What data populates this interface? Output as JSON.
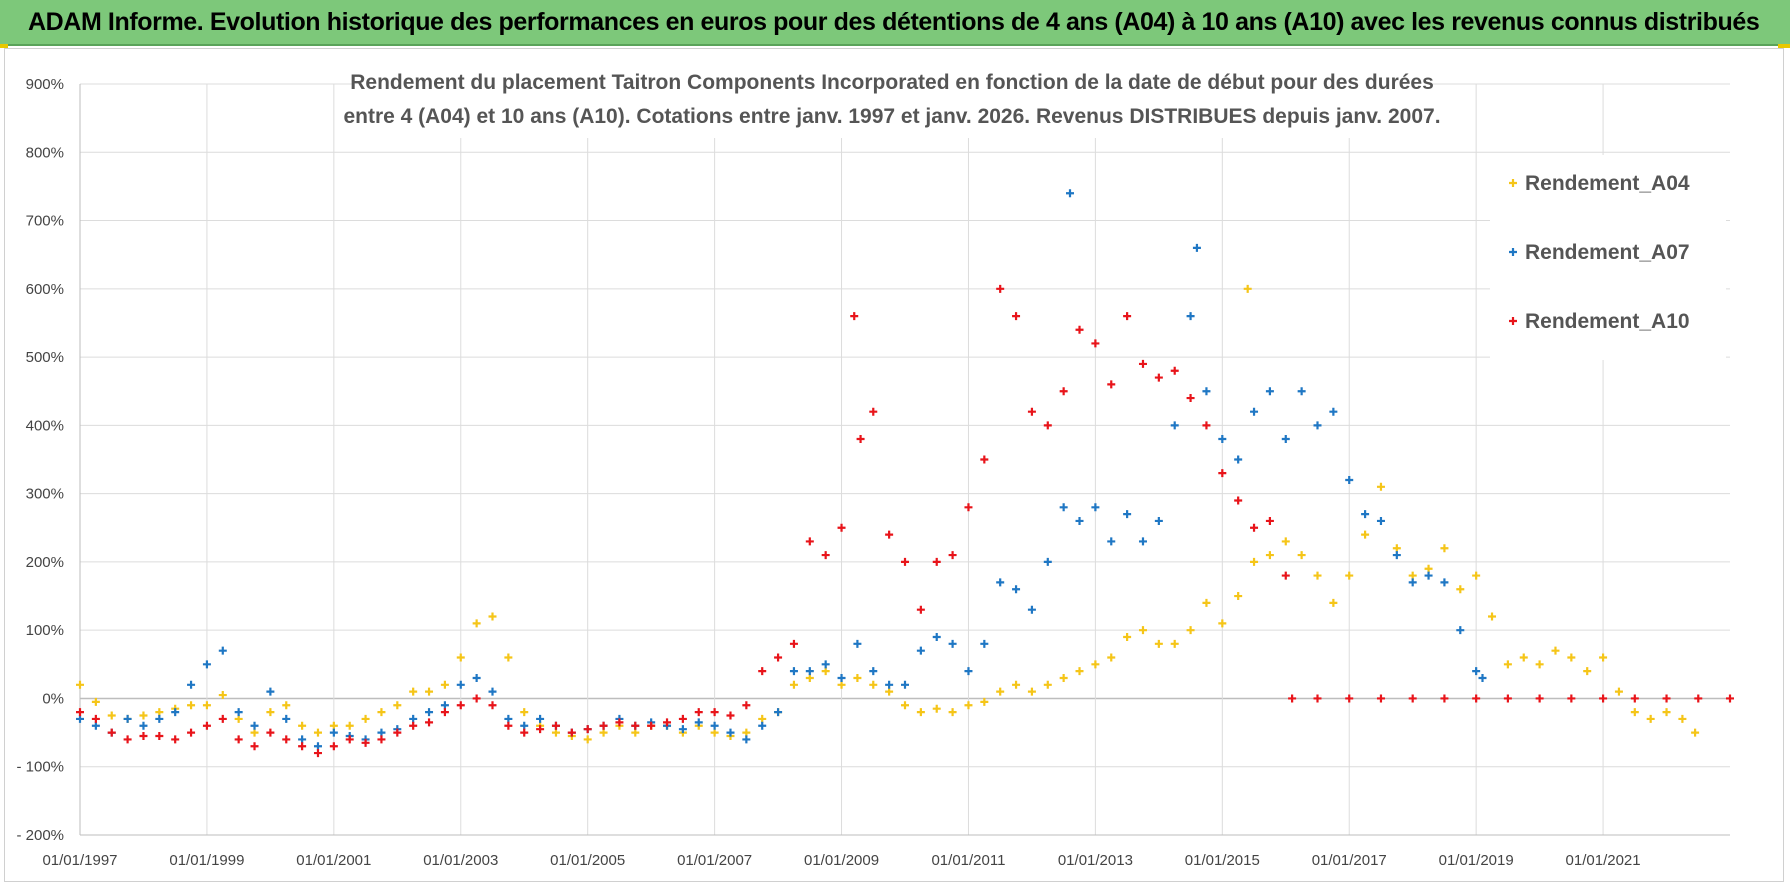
{
  "header": {
    "title": "ADAM Informe. Evolution historique des performances en euros pour des détentions de 4 ans (A04) à 10 ans (A10) avec les revenus connus distribués"
  },
  "chart_data": {
    "type": "scatter",
    "title_line1": "Rendement du placement Taitron Components Incorporated en fonction de la date de début pour des durées",
    "title_line2": "entre 4 (A04) et 10 ans (A10).  Cotations entre janv. 1997 et janv. 2026. Revenus DISTRIBUES  depuis janv. 2007.",
    "xlabel": "",
    "ylabel": "",
    "x_range": [
      1997.0,
      2023.0
    ],
    "ylim": [
      -200,
      900
    ],
    "y_ticks": [
      -200,
      -100,
      0,
      100,
      200,
      300,
      400,
      500,
      600,
      700,
      800,
      900
    ],
    "y_tick_labels": [
      "- 200%",
      "- 100%",
      "0%",
      "100%",
      "200%",
      "300%",
      "400%",
      "500%",
      "600%",
      "700%",
      "800%",
      "900%"
    ],
    "x_ticks": [
      1997,
      1999,
      2001,
      2003,
      2005,
      2007,
      2009,
      2011,
      2013,
      2015,
      2017,
      2019,
      2021
    ],
    "x_tick_labels": [
      "01/01/1997",
      "01/01/1999",
      "01/01/2001",
      "01/01/2003",
      "01/01/2005",
      "01/01/2007",
      "01/01/2009",
      "01/01/2011",
      "01/01/2013",
      "01/01/2015",
      "01/01/2017",
      "01/01/2019",
      "01/01/2021"
    ],
    "grid": true,
    "legend_position": "top-right",
    "series": [
      {
        "name": "Rendement_A04",
        "color": "#f5c518",
        "points": [
          [
            1997.0,
            20
          ],
          [
            1997.25,
            -5
          ],
          [
            1997.5,
            -25
          ],
          [
            1997.75,
            -30
          ],
          [
            1998.0,
            -25
          ],
          [
            1998.25,
            -20
          ],
          [
            1998.5,
            -15
          ],
          [
            1998.75,
            -10
          ],
          [
            1999.0,
            -10
          ],
          [
            1999.25,
            5
          ],
          [
            1999.5,
            -30
          ],
          [
            1999.75,
            -50
          ],
          [
            2000.0,
            -20
          ],
          [
            2000.25,
            -10
          ],
          [
            2000.5,
            -40
          ],
          [
            2000.75,
            -50
          ],
          [
            2001.0,
            -40
          ],
          [
            2001.25,
            -40
          ],
          [
            2001.5,
            -30
          ],
          [
            2001.75,
            -20
          ],
          [
            2002.0,
            -10
          ],
          [
            2002.25,
            10
          ],
          [
            2002.5,
            10
          ],
          [
            2002.75,
            20
          ],
          [
            2003.0,
            60
          ],
          [
            2003.25,
            110
          ],
          [
            2003.5,
            120
          ],
          [
            2003.75,
            60
          ],
          [
            2004.0,
            -20
          ],
          [
            2004.25,
            -40
          ],
          [
            2004.5,
            -50
          ],
          [
            2004.75,
            -55
          ],
          [
            2005.0,
            -60
          ],
          [
            2005.25,
            -50
          ],
          [
            2005.5,
            -40
          ],
          [
            2005.75,
            -50
          ],
          [
            2006.0,
            -40
          ],
          [
            2006.25,
            -40
          ],
          [
            2006.5,
            -50
          ],
          [
            2006.75,
            -40
          ],
          [
            2007.0,
            -50
          ],
          [
            2007.25,
            -55
          ],
          [
            2007.5,
            -50
          ],
          [
            2007.75,
            -30
          ],
          [
            2008.0,
            -20
          ],
          [
            2008.25,
            20
          ],
          [
            2008.5,
            30
          ],
          [
            2008.75,
            40
          ],
          [
            2009.0,
            20
          ],
          [
            2009.25,
            30
          ],
          [
            2009.5,
            20
          ],
          [
            2009.75,
            10
          ],
          [
            2010.0,
            -10
          ],
          [
            2010.25,
            -20
          ],
          [
            2010.5,
            -15
          ],
          [
            2010.75,
            -20
          ],
          [
            2011.0,
            -10
          ],
          [
            2011.25,
            -5
          ],
          [
            2011.5,
            10
          ],
          [
            2011.75,
            20
          ],
          [
            2012.0,
            10
          ],
          [
            2012.25,
            20
          ],
          [
            2012.5,
            30
          ],
          [
            2012.75,
            40
          ],
          [
            2013.0,
            50
          ],
          [
            2013.25,
            60
          ],
          [
            2013.5,
            90
          ],
          [
            2013.75,
            100
          ],
          [
            2014.0,
            80
          ],
          [
            2014.25,
            80
          ],
          [
            2014.5,
            100
          ],
          [
            2014.75,
            140
          ],
          [
            2015.0,
            110
          ],
          [
            2015.25,
            150
          ],
          [
            2015.4,
            600
          ],
          [
            2015.5,
            200
          ],
          [
            2015.75,
            210
          ],
          [
            2016.0,
            230
          ],
          [
            2016.25,
            210
          ],
          [
            2016.5,
            180
          ],
          [
            2016.75,
            140
          ],
          [
            2017.0,
            180
          ],
          [
            2017.25,
            240
          ],
          [
            2017.5,
            310
          ],
          [
            2017.75,
            220
          ],
          [
            2018.0,
            180
          ],
          [
            2018.25,
            190
          ],
          [
            2018.5,
            220
          ],
          [
            2018.75,
            160
          ],
          [
            2019.0,
            180
          ],
          [
            2019.25,
            120
          ],
          [
            2019.5,
            50
          ],
          [
            2019.75,
            60
          ],
          [
            2020.0,
            50
          ],
          [
            2020.25,
            70
          ],
          [
            2020.5,
            60
          ],
          [
            2020.75,
            40
          ],
          [
            2021.0,
            60
          ],
          [
            2021.25,
            10
          ],
          [
            2021.5,
            -20
          ],
          [
            2021.75,
            -30
          ],
          [
            2022.0,
            -20
          ],
          [
            2022.25,
            -30
          ],
          [
            2022.45,
            -50
          ]
        ]
      },
      {
        "name": "Rendement_A07",
        "color": "#1f77c4",
        "points": [
          [
            1997.0,
            -30
          ],
          [
            1997.25,
            -40
          ],
          [
            1997.5,
            -50
          ],
          [
            1997.75,
            -30
          ],
          [
            1998.0,
            -40
          ],
          [
            1998.25,
            -30
          ],
          [
            1998.5,
            -20
          ],
          [
            1998.75,
            20
          ],
          [
            1999.0,
            50
          ],
          [
            1999.25,
            70
          ],
          [
            1999.5,
            -20
          ],
          [
            1999.75,
            -40
          ],
          [
            2000.0,
            10
          ],
          [
            2000.25,
            -30
          ],
          [
            2000.5,
            -60
          ],
          [
            2000.75,
            -70
          ],
          [
            2001.0,
            -50
          ],
          [
            2001.25,
            -55
          ],
          [
            2001.5,
            -60
          ],
          [
            2001.75,
            -50
          ],
          [
            2002.0,
            -45
          ],
          [
            2002.25,
            -30
          ],
          [
            2002.5,
            -20
          ],
          [
            2002.75,
            -10
          ],
          [
            2003.0,
            20
          ],
          [
            2003.25,
            30
          ],
          [
            2003.5,
            10
          ],
          [
            2003.75,
            -30
          ],
          [
            2004.0,
            -40
          ],
          [
            2004.25,
            -30
          ],
          [
            2004.5,
            -40
          ],
          [
            2004.75,
            -50
          ],
          [
            2005.0,
            -45
          ],
          [
            2005.25,
            -40
          ],
          [
            2005.5,
            -30
          ],
          [
            2005.75,
            -40
          ],
          [
            2006.0,
            -35
          ],
          [
            2006.25,
            -40
          ],
          [
            2006.5,
            -45
          ],
          [
            2006.75,
            -35
          ],
          [
            2007.0,
            -40
          ],
          [
            2007.25,
            -50
          ],
          [
            2007.5,
            -60
          ],
          [
            2007.75,
            -40
          ],
          [
            2008.0,
            -20
          ],
          [
            2008.25,
            40
          ],
          [
            2008.5,
            40
          ],
          [
            2008.75,
            50
          ],
          [
            2009.0,
            30
          ],
          [
            2009.25,
            80
          ],
          [
            2009.5,
            40
          ],
          [
            2009.75,
            20
          ],
          [
            2010.0,
            20
          ],
          [
            2010.25,
            70
          ],
          [
            2010.5,
            90
          ],
          [
            2010.75,
            80
          ],
          [
            2011.0,
            40
          ],
          [
            2011.25,
            80
          ],
          [
            2011.5,
            170
          ],
          [
            2011.75,
            160
          ],
          [
            2012.0,
            130
          ],
          [
            2012.25,
            200
          ],
          [
            2012.5,
            280
          ],
          [
            2012.6,
            740
          ],
          [
            2012.75,
            260
          ],
          [
            2013.0,
            280
          ],
          [
            2013.25,
            230
          ],
          [
            2013.5,
            270
          ],
          [
            2013.75,
            230
          ],
          [
            2014.0,
            260
          ],
          [
            2014.25,
            400
          ],
          [
            2014.5,
            560
          ],
          [
            2014.6,
            660
          ],
          [
            2014.75,
            450
          ],
          [
            2015.0,
            380
          ],
          [
            2015.25,
            350
          ],
          [
            2015.5,
            420
          ],
          [
            2015.75,
            450
          ],
          [
            2016.0,
            380
          ],
          [
            2016.25,
            450
          ],
          [
            2016.5,
            400
          ],
          [
            2016.75,
            420
          ],
          [
            2017.0,
            320
          ],
          [
            2017.25,
            270
          ],
          [
            2017.5,
            260
          ],
          [
            2017.75,
            210
          ],
          [
            2018.0,
            170
          ],
          [
            2018.25,
            180
          ],
          [
            2018.5,
            170
          ],
          [
            2018.75,
            100
          ],
          [
            2019.0,
            40
          ],
          [
            2019.1,
            30
          ]
        ]
      },
      {
        "name": "Rendement_A10",
        "color": "#e8141a",
        "points": [
          [
            1997.0,
            -20
          ],
          [
            1997.25,
            -30
          ],
          [
            1997.5,
            -50
          ],
          [
            1997.75,
            -60
          ],
          [
            1998.0,
            -55
          ],
          [
            1998.25,
            -55
          ],
          [
            1998.5,
            -60
          ],
          [
            1998.75,
            -50
          ],
          [
            1999.0,
            -40
          ],
          [
            1999.25,
            -30
          ],
          [
            1999.5,
            -60
          ],
          [
            1999.75,
            -70
          ],
          [
            2000.0,
            -50
          ],
          [
            2000.25,
            -60
          ],
          [
            2000.5,
            -70
          ],
          [
            2000.75,
            -80
          ],
          [
            2001.0,
            -70
          ],
          [
            2001.25,
            -60
          ],
          [
            2001.5,
            -65
          ],
          [
            2001.75,
            -60
          ],
          [
            2002.0,
            -50
          ],
          [
            2002.25,
            -40
          ],
          [
            2002.5,
            -35
          ],
          [
            2002.75,
            -20
          ],
          [
            2003.0,
            -10
          ],
          [
            2003.25,
            0
          ],
          [
            2003.5,
            -10
          ],
          [
            2003.75,
            -40
          ],
          [
            2004.0,
            -50
          ],
          [
            2004.25,
            -45
          ],
          [
            2004.5,
            -40
          ],
          [
            2004.75,
            -50
          ],
          [
            2005.0,
            -45
          ],
          [
            2005.25,
            -40
          ],
          [
            2005.5,
            -35
          ],
          [
            2005.75,
            -40
          ],
          [
            2006.0,
            -40
          ],
          [
            2006.25,
            -35
          ],
          [
            2006.5,
            -30
          ],
          [
            2006.75,
            -20
          ],
          [
            2007.0,
            -20
          ],
          [
            2007.25,
            -25
          ],
          [
            2007.5,
            -10
          ],
          [
            2007.75,
            40
          ],
          [
            2008.0,
            60
          ],
          [
            2008.25,
            80
          ],
          [
            2008.5,
            230
          ],
          [
            2008.75,
            210
          ],
          [
            2009.0,
            250
          ],
          [
            2009.2,
            560
          ],
          [
            2009.3,
            380
          ],
          [
            2009.5,
            420
          ],
          [
            2009.75,
            240
          ],
          [
            2010.0,
            200
          ],
          [
            2010.25,
            130
          ],
          [
            2010.5,
            200
          ],
          [
            2010.75,
            210
          ],
          [
            2011.0,
            280
          ],
          [
            2011.25,
            350
          ],
          [
            2011.5,
            600
          ],
          [
            2011.75,
            560
          ],
          [
            2012.0,
            420
          ],
          [
            2012.25,
            400
          ],
          [
            2012.5,
            450
          ],
          [
            2012.75,
            540
          ],
          [
            2013.0,
            520
          ],
          [
            2013.25,
            460
          ],
          [
            2013.5,
            560
          ],
          [
            2013.75,
            490
          ],
          [
            2014.0,
            470
          ],
          [
            2014.25,
            480
          ],
          [
            2014.5,
            440
          ],
          [
            2014.75,
            400
          ],
          [
            2015.0,
            330
          ],
          [
            2015.25,
            290
          ],
          [
            2015.5,
            250
          ],
          [
            2015.75,
            260
          ],
          [
            2016.0,
            180
          ],
          [
            2016.1,
            0
          ],
          [
            2016.5,
            0
          ],
          [
            2017.0,
            0
          ],
          [
            2017.5,
            0
          ],
          [
            2018.0,
            0
          ],
          [
            2018.5,
            0
          ],
          [
            2019.0,
            0
          ],
          [
            2019.5,
            0
          ],
          [
            2020.0,
            0
          ],
          [
            2020.5,
            0
          ],
          [
            2021.0,
            0
          ],
          [
            2021.5,
            0
          ],
          [
            2022.0,
            0
          ],
          [
            2022.5,
            0
          ],
          [
            2023.0,
            0
          ]
        ]
      }
    ]
  }
}
